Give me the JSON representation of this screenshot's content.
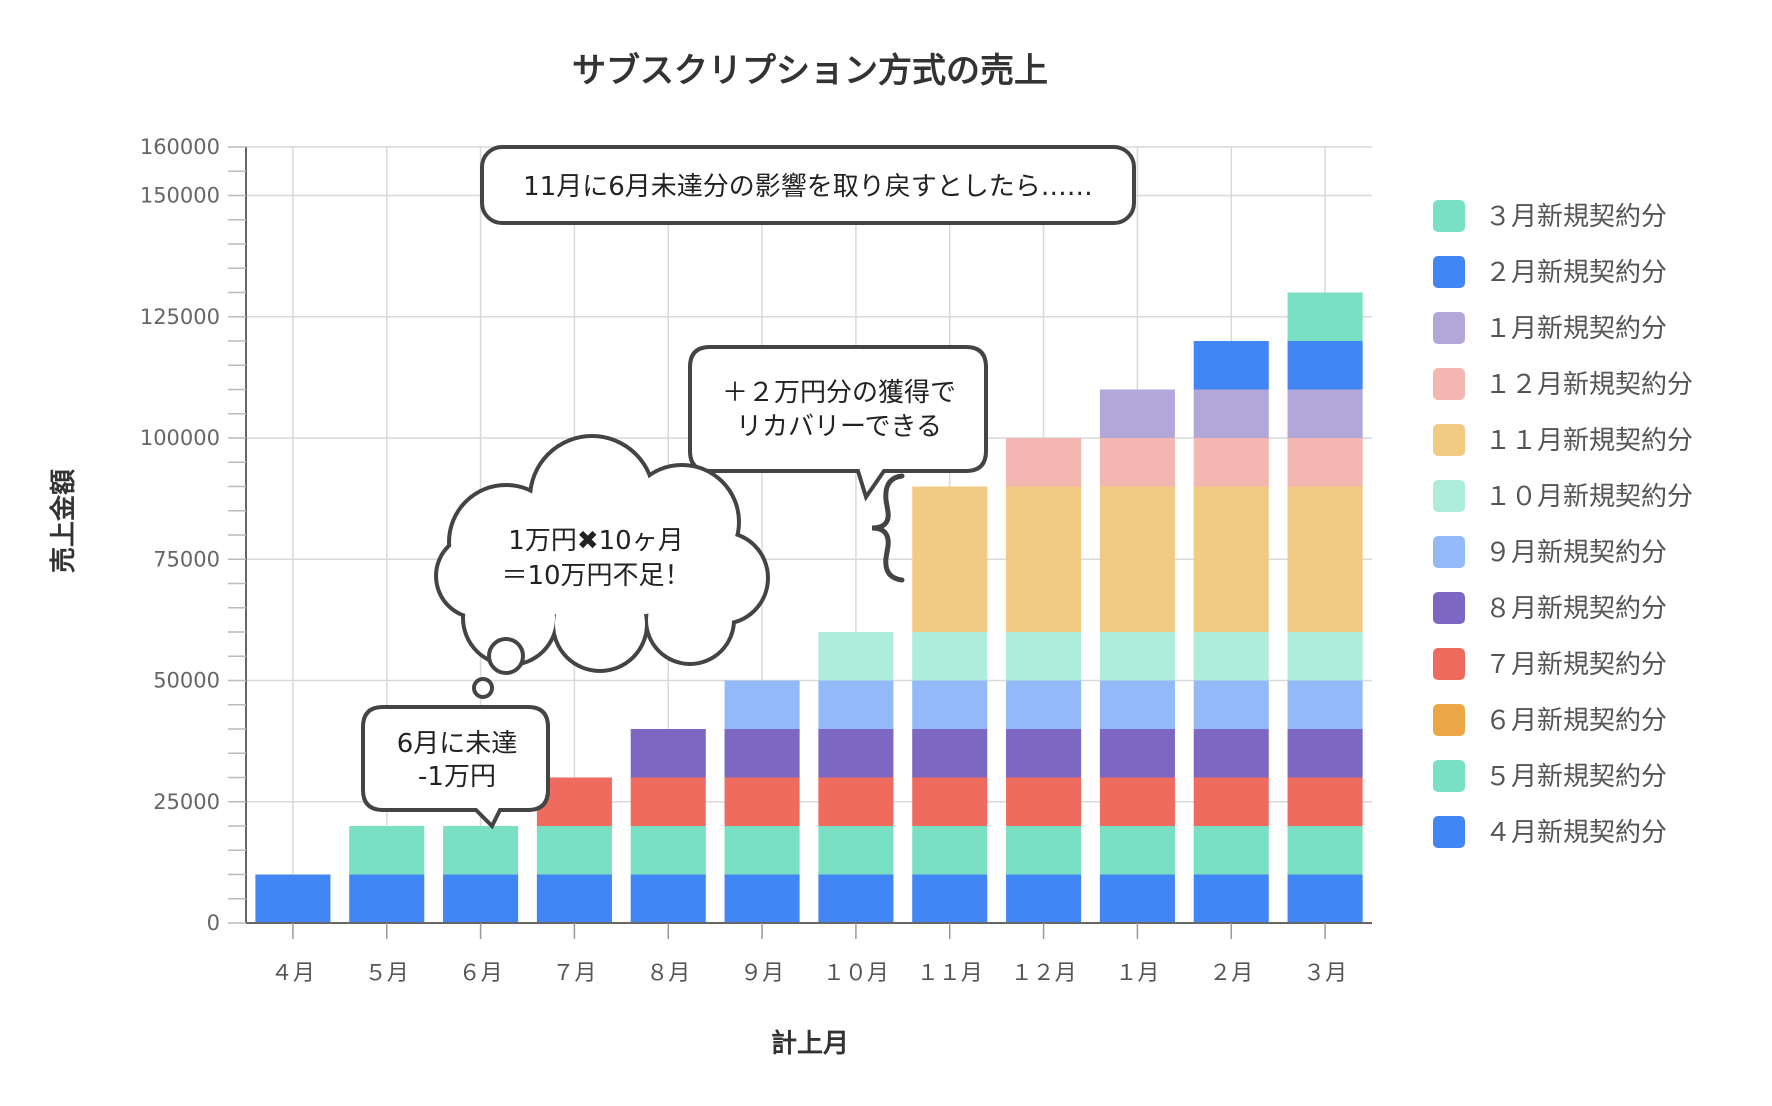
{
  "chart_data": {
    "type": "bar",
    "stacked": true,
    "title": "サブスクリプション方式の売上",
    "xlabel": "計上月",
    "ylabel": "売上金額",
    "ylim": [
      0,
      160000
    ],
    "yticks": [
      0,
      25000,
      50000,
      75000,
      100000,
      125000,
      150000,
      160000
    ],
    "grid": true,
    "legend_position": "right",
    "categories": [
      "４月",
      "５月",
      "６月",
      "７月",
      "８月",
      "９月",
      "１０月",
      "１１月",
      "１２月",
      "１月",
      "２月",
      "３月"
    ],
    "series": [
      {
        "name": "４月新規契約分",
        "color": "#4285f4",
        "values": [
          10000,
          10000,
          10000,
          10000,
          10000,
          10000,
          10000,
          10000,
          10000,
          10000,
          10000,
          10000
        ]
      },
      {
        "name": "５月新規契約分",
        "color": "#7ae0c3",
        "values": [
          0,
          10000,
          10000,
          10000,
          10000,
          10000,
          10000,
          10000,
          10000,
          10000,
          10000,
          10000
        ]
      },
      {
        "name": "６月新規契約分",
        "color": "#eba646",
        "values": [
          0,
          0,
          0,
          0,
          0,
          0,
          0,
          0,
          0,
          0,
          0,
          0
        ]
      },
      {
        "name": "７月新規契約分",
        "color": "#ee6b5e",
        "values": [
          0,
          0,
          0,
          10000,
          10000,
          10000,
          10000,
          10000,
          10000,
          10000,
          10000,
          10000
        ]
      },
      {
        "name": "８月新規契約分",
        "color": "#7c67c2",
        "values": [
          0,
          0,
          0,
          0,
          10000,
          10000,
          10000,
          10000,
          10000,
          10000,
          10000,
          10000
        ]
      },
      {
        "name": "９月新規契約分",
        "color": "#93b9f8",
        "values": [
          0,
          0,
          0,
          0,
          0,
          10000,
          10000,
          10000,
          10000,
          10000,
          10000,
          10000
        ]
      },
      {
        "name": "１０月新規契約分",
        "color": "#aeeddc",
        "values": [
          0,
          0,
          0,
          0,
          0,
          0,
          10000,
          10000,
          10000,
          10000,
          10000,
          10000
        ]
      },
      {
        "name": "１１月新規契約分",
        "color": "#f1ca83",
        "values": [
          0,
          0,
          0,
          0,
          0,
          0,
          0,
          30000,
          30000,
          30000,
          30000,
          30000
        ]
      },
      {
        "name": "１２月新規契約分",
        "color": "#f4b6b1",
        "values": [
          0,
          0,
          0,
          0,
          0,
          0,
          0,
          0,
          10000,
          10000,
          10000,
          10000
        ]
      },
      {
        "name": "１月新規契約分",
        "color": "#b3a7d9",
        "values": [
          0,
          0,
          0,
          0,
          0,
          0,
          0,
          0,
          0,
          10000,
          10000,
          10000
        ]
      },
      {
        "name": "２月新規契約分",
        "color": "#4285f4",
        "values": [
          0,
          0,
          0,
          0,
          0,
          0,
          0,
          0,
          0,
          0,
          10000,
          10000
        ]
      },
      {
        "name": "３月新規契約分",
        "color": "#7ae0c3",
        "values": [
          0,
          0,
          0,
          0,
          0,
          0,
          0,
          0,
          0,
          0,
          0,
          10000
        ]
      }
    ],
    "legend_order": [
      "３月新規契約分",
      "２月新規契約分",
      "１月新規契約分",
      "１２月新規契約分",
      "１１月新規契約分",
      "１０月新規契約分",
      "９月新規契約分",
      "８月新規契約分",
      "７月新規契約分",
      "６月新規契約分",
      "５月新規契約分",
      "４月新規契約分"
    ],
    "annotations": {
      "top_banner": "11月に6月未達分の影響を取り戻すとしたら……",
      "recovery": [
        "＋２万円分の獲得で",
        "リカバリーできる"
      ],
      "thought": [
        "1万円✖10ヶ月",
        "＝10万円不足！"
      ],
      "june_miss": [
        "6月に未達",
        "-1万円"
      ]
    }
  }
}
